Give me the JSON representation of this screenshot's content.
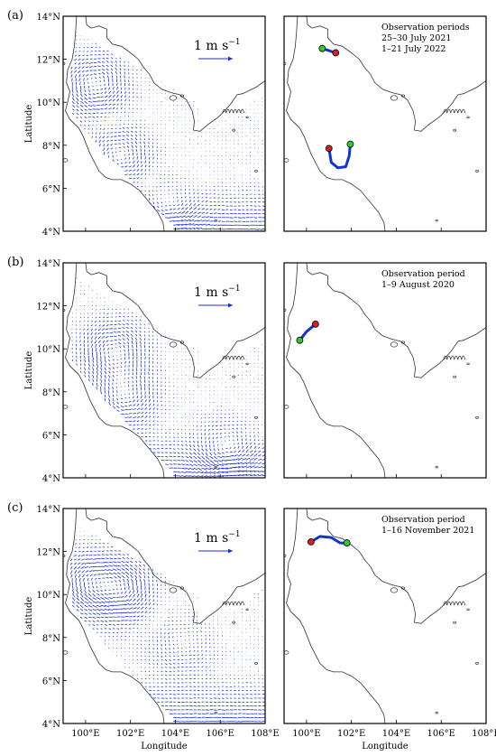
{
  "rows": [
    {
      "label": "(a)",
      "observation_text": [
        "Observation periods",
        "25–30 July 2021",
        "1–21 July 2022"
      ],
      "scale_label": "1 m s",
      "scale_exp": "−1",
      "eddies": [
        {
          "lon": 100.4,
          "lat": 10.8,
          "strength": 1.0
        },
        {
          "lon": 101.5,
          "lat": 7.5,
          "strength": 0.9
        },
        {
          "lon": 103.6,
          "lat": 5.0,
          "strength": 0.7
        }
      ],
      "trajectories": [
        {
          "path": [
            [
              100.7,
              12.5
            ],
            [
              101.0,
              12.4
            ],
            [
              101.3,
              12.3
            ]
          ],
          "start": [
            100.7,
            12.5
          ],
          "end": [
            101.3,
            12.3
          ]
        },
        {
          "path": [
            [
              101.0,
              7.85
            ],
            [
              101.1,
              7.2
            ],
            [
              101.4,
              6.95
            ],
            [
              101.75,
              7.0
            ],
            [
              101.9,
              7.5
            ],
            [
              101.95,
              8.05
            ]
          ],
          "start": [
            101.95,
            8.05
          ],
          "end": [
            101.0,
            7.85
          ]
        }
      ]
    },
    {
      "label": "(b)",
      "observation_text": [
        "Observation period",
        "1–9 August 2020"
      ],
      "scale_label": "1 m s",
      "scale_exp": "−1",
      "eddies": [
        {
          "lon": 101.3,
          "lat": 9.9,
          "strength": 1.0
        },
        {
          "lon": 101.7,
          "lat": 7.8,
          "strength": 0.9
        },
        {
          "lon": 106.2,
          "lat": 5.2,
          "strength": 0.8
        }
      ],
      "trajectories": [
        {
          "path": [
            [
              99.7,
              10.4
            ],
            [
              100.0,
              10.8
            ],
            [
              100.4,
              11.15
            ]
          ],
          "start": [
            99.7,
            10.4
          ],
          "end": [
            100.4,
            11.15
          ]
        }
      ]
    },
    {
      "label": "(c)",
      "observation_text": [
        "Observation period",
        "1–16 November 2021"
      ],
      "scale_label": "1 m s",
      "scale_exp": "−1",
      "eddies": [
        {
          "lon": 100.2,
          "lat": 10.6,
          "strength": 0.9
        },
        {
          "lon": 101.6,
          "lat": 10.2,
          "strength": 1.0
        },
        {
          "lon": 104.3,
          "lat": 7.7,
          "strength": 0.5
        }
      ],
      "trajectories": [
        {
          "path": [
            [
              100.2,
              12.45
            ],
            [
              100.6,
              12.7
            ],
            [
              101.1,
              12.65
            ],
            [
              101.5,
              12.4
            ],
            [
              101.8,
              12.4
            ]
          ],
          "start": [
            101.8,
            12.4
          ],
          "end": [
            100.2,
            12.45
          ]
        }
      ]
    }
  ],
  "axes": {
    "lat_ticks": [
      "4°N",
      "6°N",
      "8°N",
      "10°N",
      "12°N",
      "14°N"
    ],
    "lon_ticks": [
      "100°E",
      "102°E",
      "104°E",
      "106°E",
      "108°E"
    ],
    "ylabel": "Latitude",
    "xlabel": "Longitude"
  },
  "colors": {
    "vectors": "#1f2fd6",
    "trajectory": "#1433d6",
    "start_marker": "#2ecc2e",
    "end_marker": "#d42020",
    "coast": "#333333"
  }
}
